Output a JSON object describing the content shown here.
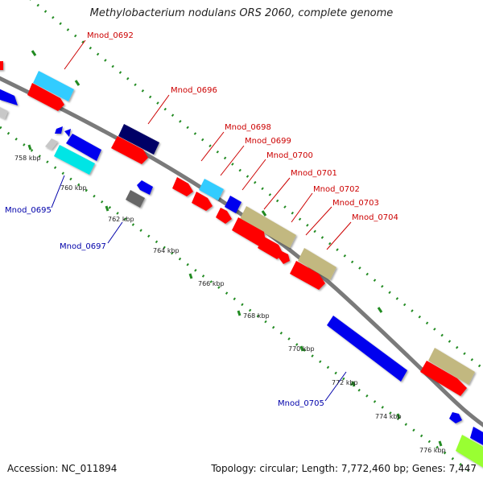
{
  "title": "Methylobacterium nodulans ORS 2060, complete genome",
  "accession": "Accession: NC_011894",
  "summary": "Topology: circular; Length: 7,772,460 bp; Genes: 7,447",
  "ticks": [
    "758 kbp",
    "760 kbp",
    "762 kbp",
    "764 kbp",
    "766 kbp",
    "768 kbp",
    "770 kbp",
    "772 kbp",
    "774 kbp",
    "776 kbp"
  ],
  "gene_labels_forward": [
    "Mnod_0692",
    "Mnod_0696",
    "Mnod_0698",
    "Mnod_0699",
    "Mnod_0700",
    "Mnod_0701",
    "Mnod_0702",
    "Mnod_0703",
    "Mnod_0704"
  ],
  "gene_labels_reverse": [
    "Mnod_0695",
    "Mnod_0697",
    "Mnod_0705"
  ],
  "colors": {
    "backbone": "#888888",
    "forward_cds": "#ff0000",
    "reverse_cds": "#0000ee",
    "light_blue": "#33ccff",
    "navy": "#000066",
    "olive": "#c2b880",
    "cyan": "#00e5e5",
    "gray": "#666666",
    "light_gray": "#c8c8c8",
    "lime": "#99ff33",
    "dots": "#228b22",
    "label_red": "#cc0000",
    "label_blue": "#0000aa"
  }
}
